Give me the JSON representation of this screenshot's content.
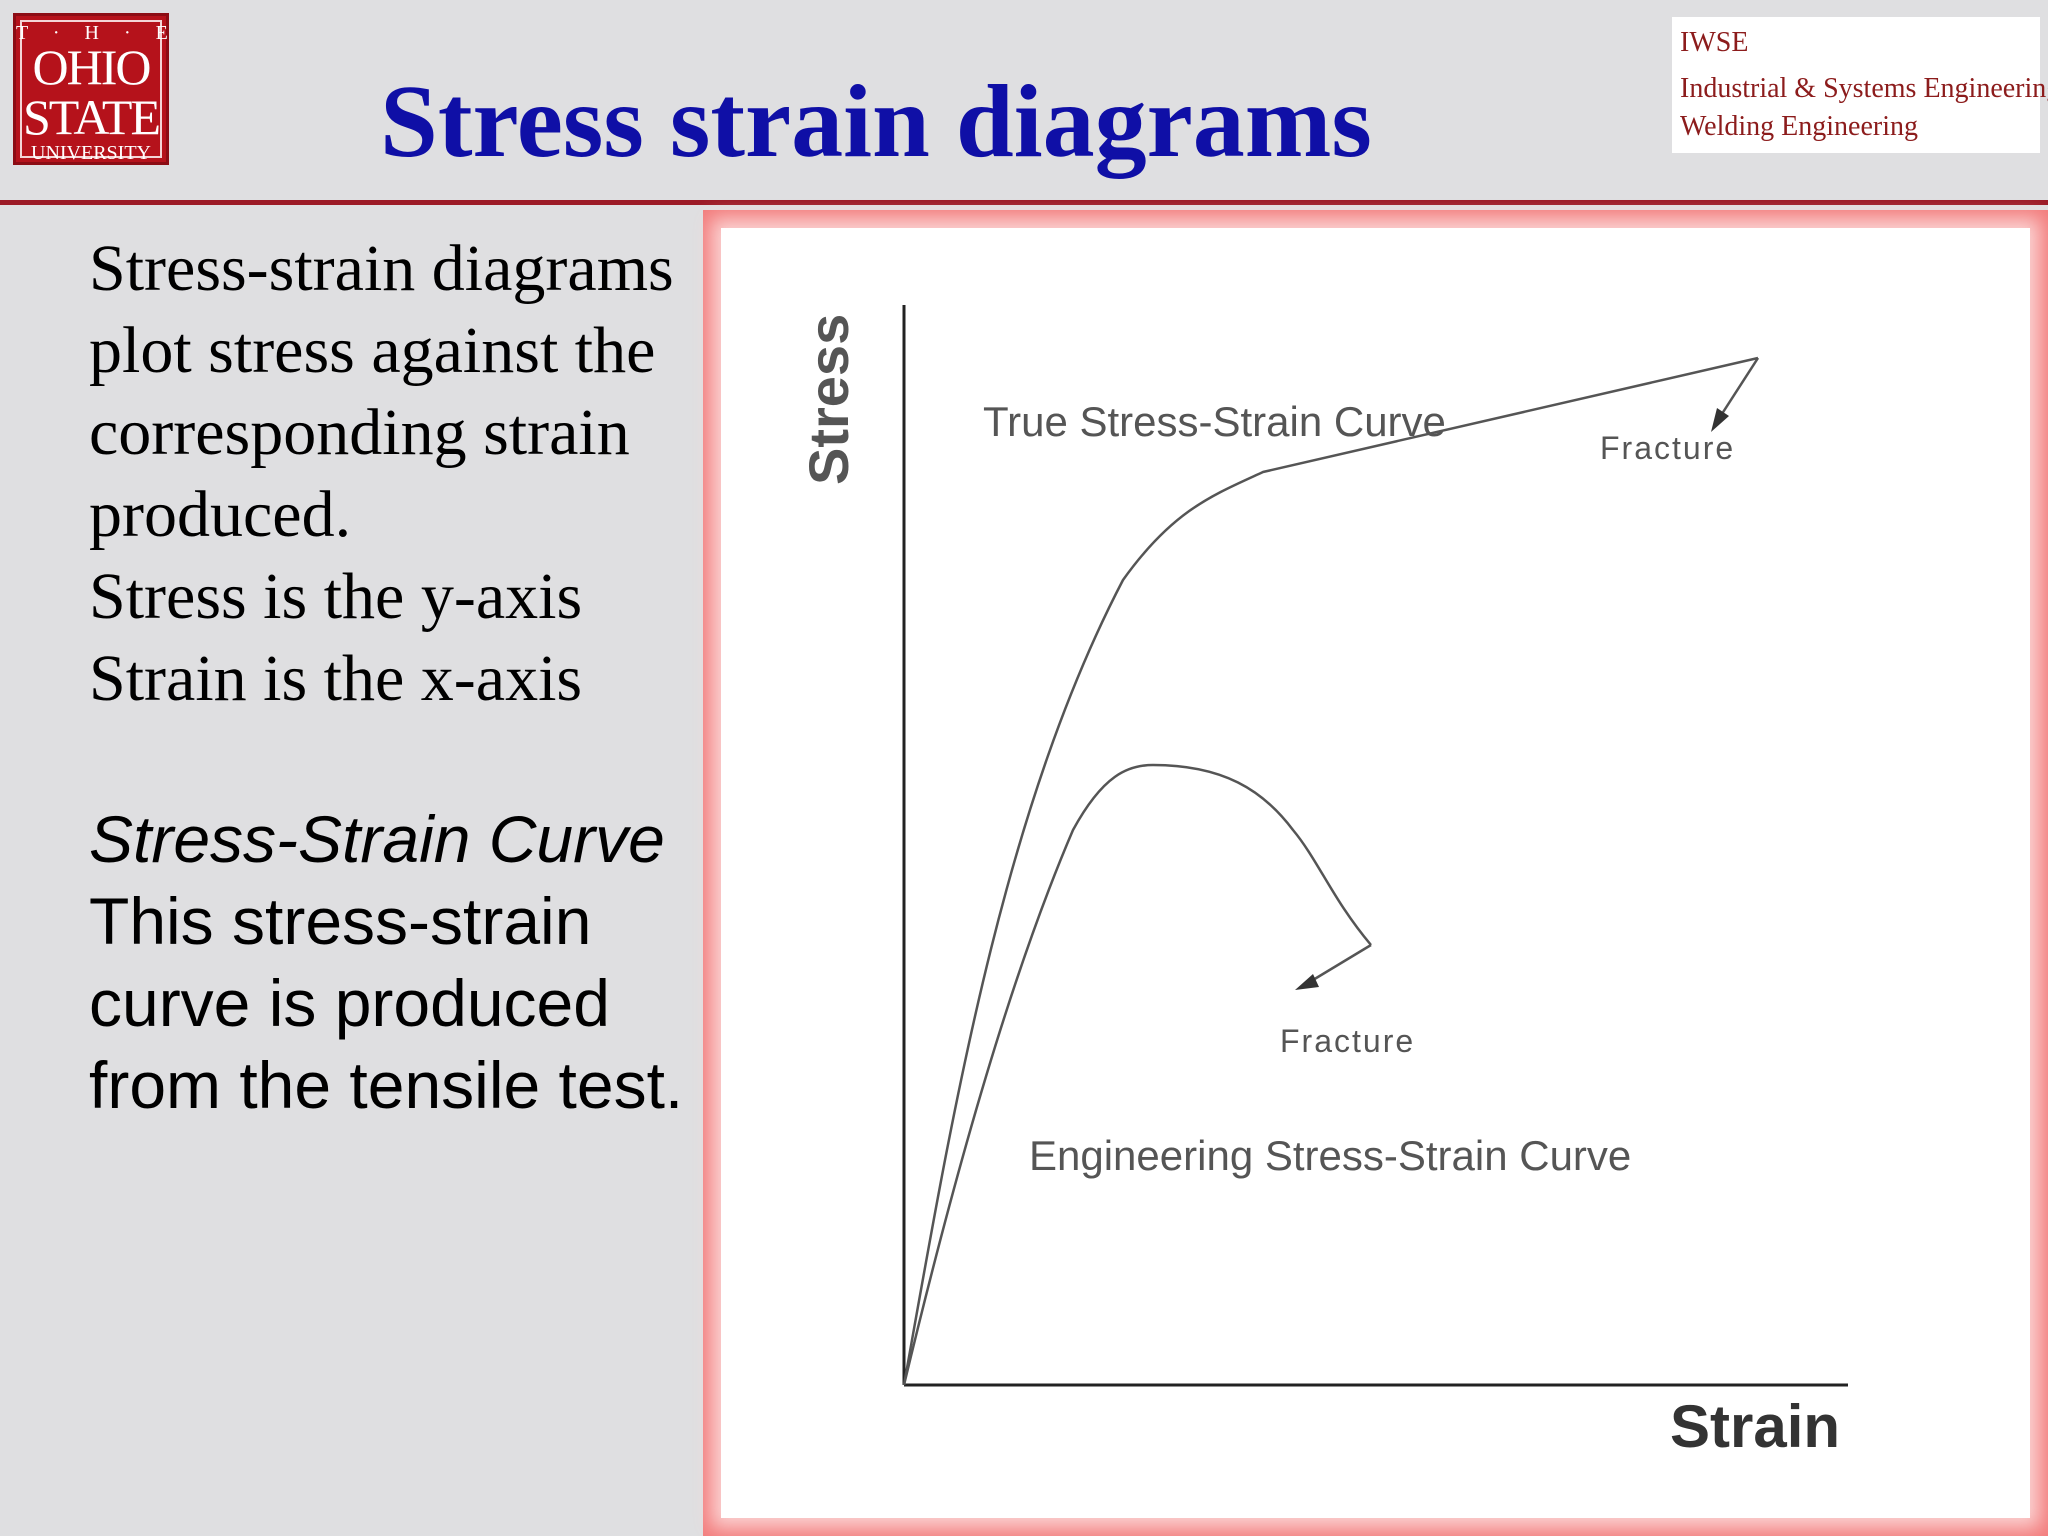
{
  "logo": {
    "the": "T · H · E",
    "ohio": "OHIO",
    "state": "STATE",
    "university": "UNIVERSITY",
    "color": "#b5121b"
  },
  "title": "Stress strain diagrams",
  "iwse": {
    "line1": "IWSE",
    "line2": "Industrial & Systems Engineering",
    "line3": "Welding Engineering",
    "color": "#8c1c1c"
  },
  "body": {
    "para1": [
      "Stress-strain diagrams",
      "plot stress against the",
      "corresponding strain",
      "produced.",
      "Stress is the y-axis",
      "Strain is the x-axis"
    ],
    "heading": "Stress-Strain Curve",
    "para2": [
      "This stress-strain",
      "curve is produced",
      "from the tensile test."
    ]
  },
  "diagram": {
    "y_axis_label": "Stress",
    "x_axis_label": "Strain",
    "true_curve_label": "True Stress-Strain Curve",
    "true_fracture_label": "Fracture",
    "eng_curve_label": "Engineering Stress-Strain Curve",
    "eng_fracture_label": "Fracture",
    "panel_color": "#f27c7c"
  }
}
